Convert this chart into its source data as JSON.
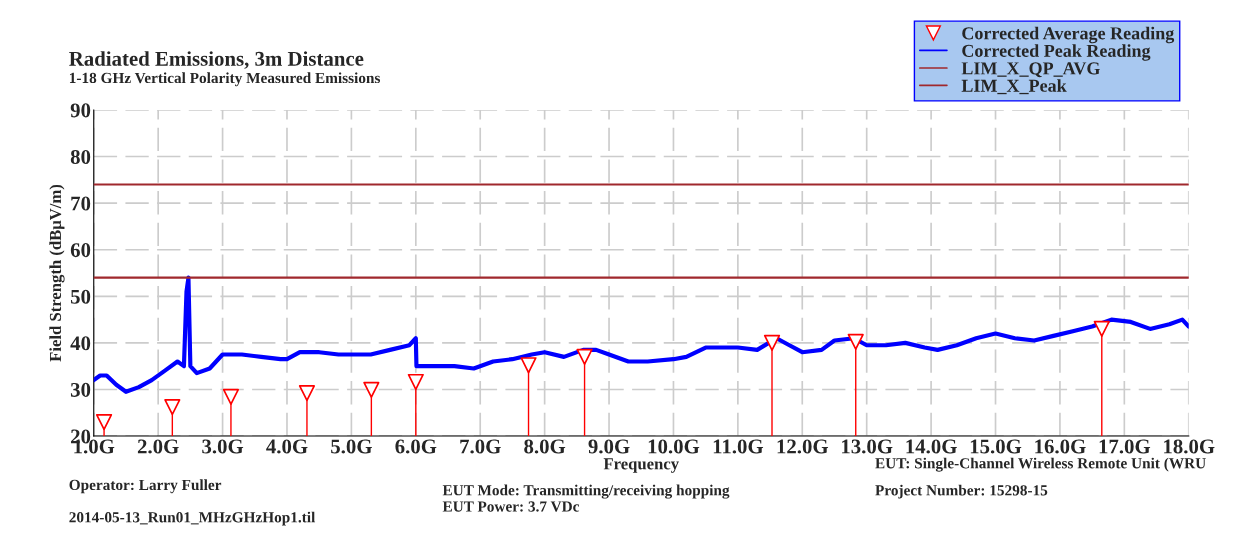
{
  "chart_data": {
    "type": "line",
    "title": "Radiated Emissions, 3m Distance",
    "subtitle": "1-18 GHz Vertical Polarity Measured Emissions",
    "xlabel": "Frequency",
    "ylabel": "Field Strength (dBμV/m)",
    "xlim": [
      1.0,
      18.0
    ],
    "xticks": [
      {
        "value": 1,
        "label": "1.0G"
      },
      {
        "value": 2,
        "label": "2.0G"
      },
      {
        "value": 3,
        "label": "3.0G"
      },
      {
        "value": 4,
        "label": "4.0G"
      },
      {
        "value": 5,
        "label": "5.0G"
      },
      {
        "value": 6,
        "label": "6.0G"
      },
      {
        "value": 7,
        "label": "7.0G"
      },
      {
        "value": 8,
        "label": "8.0G"
      },
      {
        "value": 9,
        "label": "9.0G"
      },
      {
        "value": 10,
        "label": "10.0G"
      },
      {
        "value": 11,
        "label": "11.0G"
      },
      {
        "value": 12,
        "label": "12.0G"
      },
      {
        "value": 13,
        "label": "13.0G"
      },
      {
        "value": 14,
        "label": "14.0G"
      },
      {
        "value": 15,
        "label": "15.0G"
      },
      {
        "value": 16,
        "label": "16.0G"
      },
      {
        "value": 17,
        "label": "17.0G"
      },
      {
        "value": 18,
        "label": "18.0G"
      }
    ],
    "ylim": [
      20,
      90
    ],
    "yticks": [
      20,
      30,
      40,
      50,
      60,
      70,
      80,
      90
    ],
    "grid": true,
    "legend": "top right",
    "series": [
      {
        "name": "Corrected Average Reading",
        "type": "lollipop",
        "marker": "triangle",
        "color": "#ff0000",
        "x": [
          1.16,
          2.22,
          3.13,
          4.31,
          5.31,
          6.0,
          7.75,
          8.62,
          11.53,
          12.83,
          16.65
        ],
        "values": [
          23,
          26.2,
          28.4,
          29.2,
          29.9,
          31.6,
          35.2,
          37.0,
          40.0,
          40.2,
          43.0
        ]
      },
      {
        "name": "Corrected Peak Reading",
        "color": "#0000ff",
        "x": [
          1.0,
          1.1,
          1.2,
          1.35,
          1.5,
          1.7,
          1.9,
          2.1,
          2.3,
          2.4,
          2.44,
          2.47,
          2.5,
          2.6,
          2.8,
          2.9,
          3.0,
          3.3,
          3.6,
          3.9,
          4.0,
          4.2,
          4.5,
          4.8,
          5.0,
          5.3,
          5.6,
          5.9,
          6.0,
          6.01,
          6.3,
          6.6,
          6.9,
          7.2,
          7.5,
          7.8,
          8.0,
          8.3,
          8.6,
          8.8,
          9.0,
          9.3,
          9.6,
          10.0,
          10.2,
          10.5,
          10.8,
          11.0,
          11.3,
          11.6,
          11.8,
          12.0,
          12.3,
          12.5,
          12.8,
          13.0,
          13.3,
          13.6,
          13.9,
          14.1,
          14.4,
          14.7,
          15.0,
          15.3,
          15.6,
          15.9,
          16.2,
          16.5,
          16.8,
          17.1,
          17.4,
          17.7,
          17.9,
          18.0
        ],
        "values": [
          32,
          33,
          33,
          31,
          29.5,
          30.5,
          32,
          34,
          36,
          35,
          51,
          54,
          35,
          33.5,
          34.5,
          36,
          37.5,
          37.5,
          37,
          36.5,
          36.5,
          38,
          38,
          37.5,
          37.5,
          37.5,
          38.5,
          39.5,
          41,
          35,
          35,
          35,
          34.5,
          36,
          36.5,
          37.5,
          38,
          37,
          38.5,
          38.5,
          37.5,
          36,
          36,
          36.5,
          37,
          39,
          39,
          39,
          38.5,
          41,
          39.5,
          38,
          38.5,
          40.5,
          41,
          39.5,
          39.5,
          40,
          39,
          38.5,
          39.5,
          41,
          42,
          41,
          40.5,
          41.5,
          42.5,
          43.5,
          45,
          44.5,
          43,
          44,
          45,
          43.5
        ]
      },
      {
        "name": "LIM_X_QP_AVG",
        "color": "#a0282d",
        "x": [
          1.0,
          18.0
        ],
        "values": [
          54,
          54
        ]
      },
      {
        "name": "LIM_X_Peak",
        "color": "#a0282d",
        "x": [
          1.0,
          18.0
        ],
        "values": [
          74,
          74
        ]
      }
    ],
    "annotations": [
      "Operator: Larry Fuller",
      "2014-05-13_Run01_MHzGHzHop1.til",
      "EUT Mode: Transmitting/receiving hopping",
      "EUT Power: 3.7 VDc",
      "EUT: Single-Channel Wireless Remote Unit (WRU",
      "Project Number: 15298-15"
    ]
  }
}
